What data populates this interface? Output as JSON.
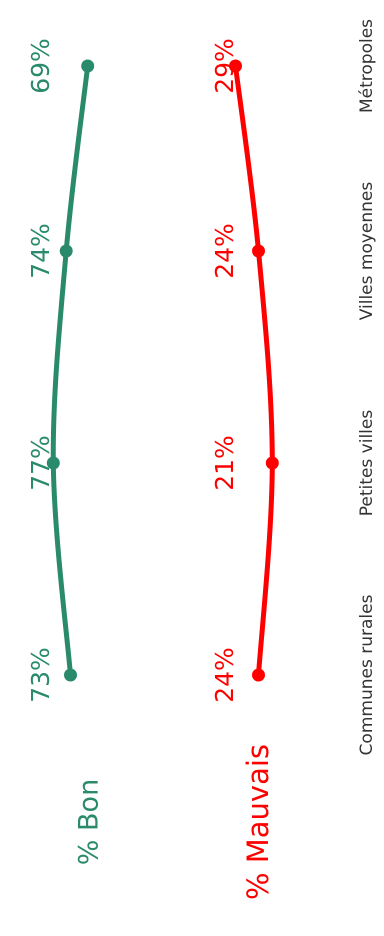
{
  "chart_data": {
    "type": "line",
    "categories": [
      "Communes rurales",
      "Petites villes",
      "Villes moyennes",
      "Métropoles"
    ],
    "series": [
      {
        "name": "% Bon",
        "values": [
          73,
          77,
          74,
          69
        ],
        "labels": [
          "73%",
          "77%",
          "74%",
          "69%"
        ],
        "color": "#2a8a6c"
      },
      {
        "name": "% Mauvais",
        "values": [
          24,
          21,
          24,
          29
        ],
        "labels": [
          "24%",
          "21%",
          "24%",
          "29%"
        ],
        "color": "#ff0000"
      }
    ],
    "ylim": [
      0,
      100
    ],
    "orientation": "rotated-90-ccw",
    "grid": false
  }
}
